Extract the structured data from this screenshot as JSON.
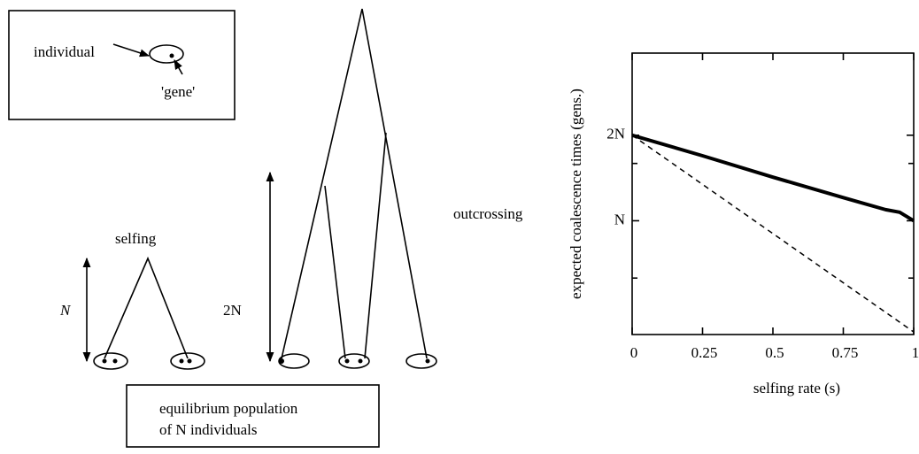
{
  "diagram": {
    "legend_box": {
      "individual": "individual",
      "gene": "'gene'"
    },
    "labels": {
      "selfing": "selfing",
      "outcrossing": "outcrossing",
      "selfing_height": "N",
      "outcrossing_height": "2N"
    },
    "population_box": [
      "equilibrium population",
      "of N individuals"
    ]
  },
  "chart_data": {
    "type": "line",
    "x_label": "selfing rate (s)",
    "y_label": "expected coalescence times (gens.)",
    "x": [
      0,
      0.25,
      0.5,
      0.75,
      0.9,
      0.95,
      1
    ],
    "series": [
      {
        "color": "#000000",
        "style": "solid",
        "width": 4,
        "values": [
          2,
          1.76,
          1.51,
          1.27,
          1.13,
          1.1,
          1.0
        ]
      },
      {
        "color": "#000000",
        "style": "dashed",
        "width": 1.5,
        "values": [
          2,
          1.425,
          0.85,
          0.275,
          -0.07,
          -0.185,
          -0.3
        ]
      }
    ],
    "xlim": [
      0,
      1
    ],
    "ylim": [
      -0.33,
      2.96
    ],
    "xticks": [
      0,
      0.25,
      0.5,
      0.75,
      1
    ],
    "yticks": [
      {
        "value": 1,
        "label": "N"
      },
      {
        "value": 2,
        "label": "2N"
      }
    ],
    "yminorticks": [
      0.33,
      1.67
    ]
  }
}
